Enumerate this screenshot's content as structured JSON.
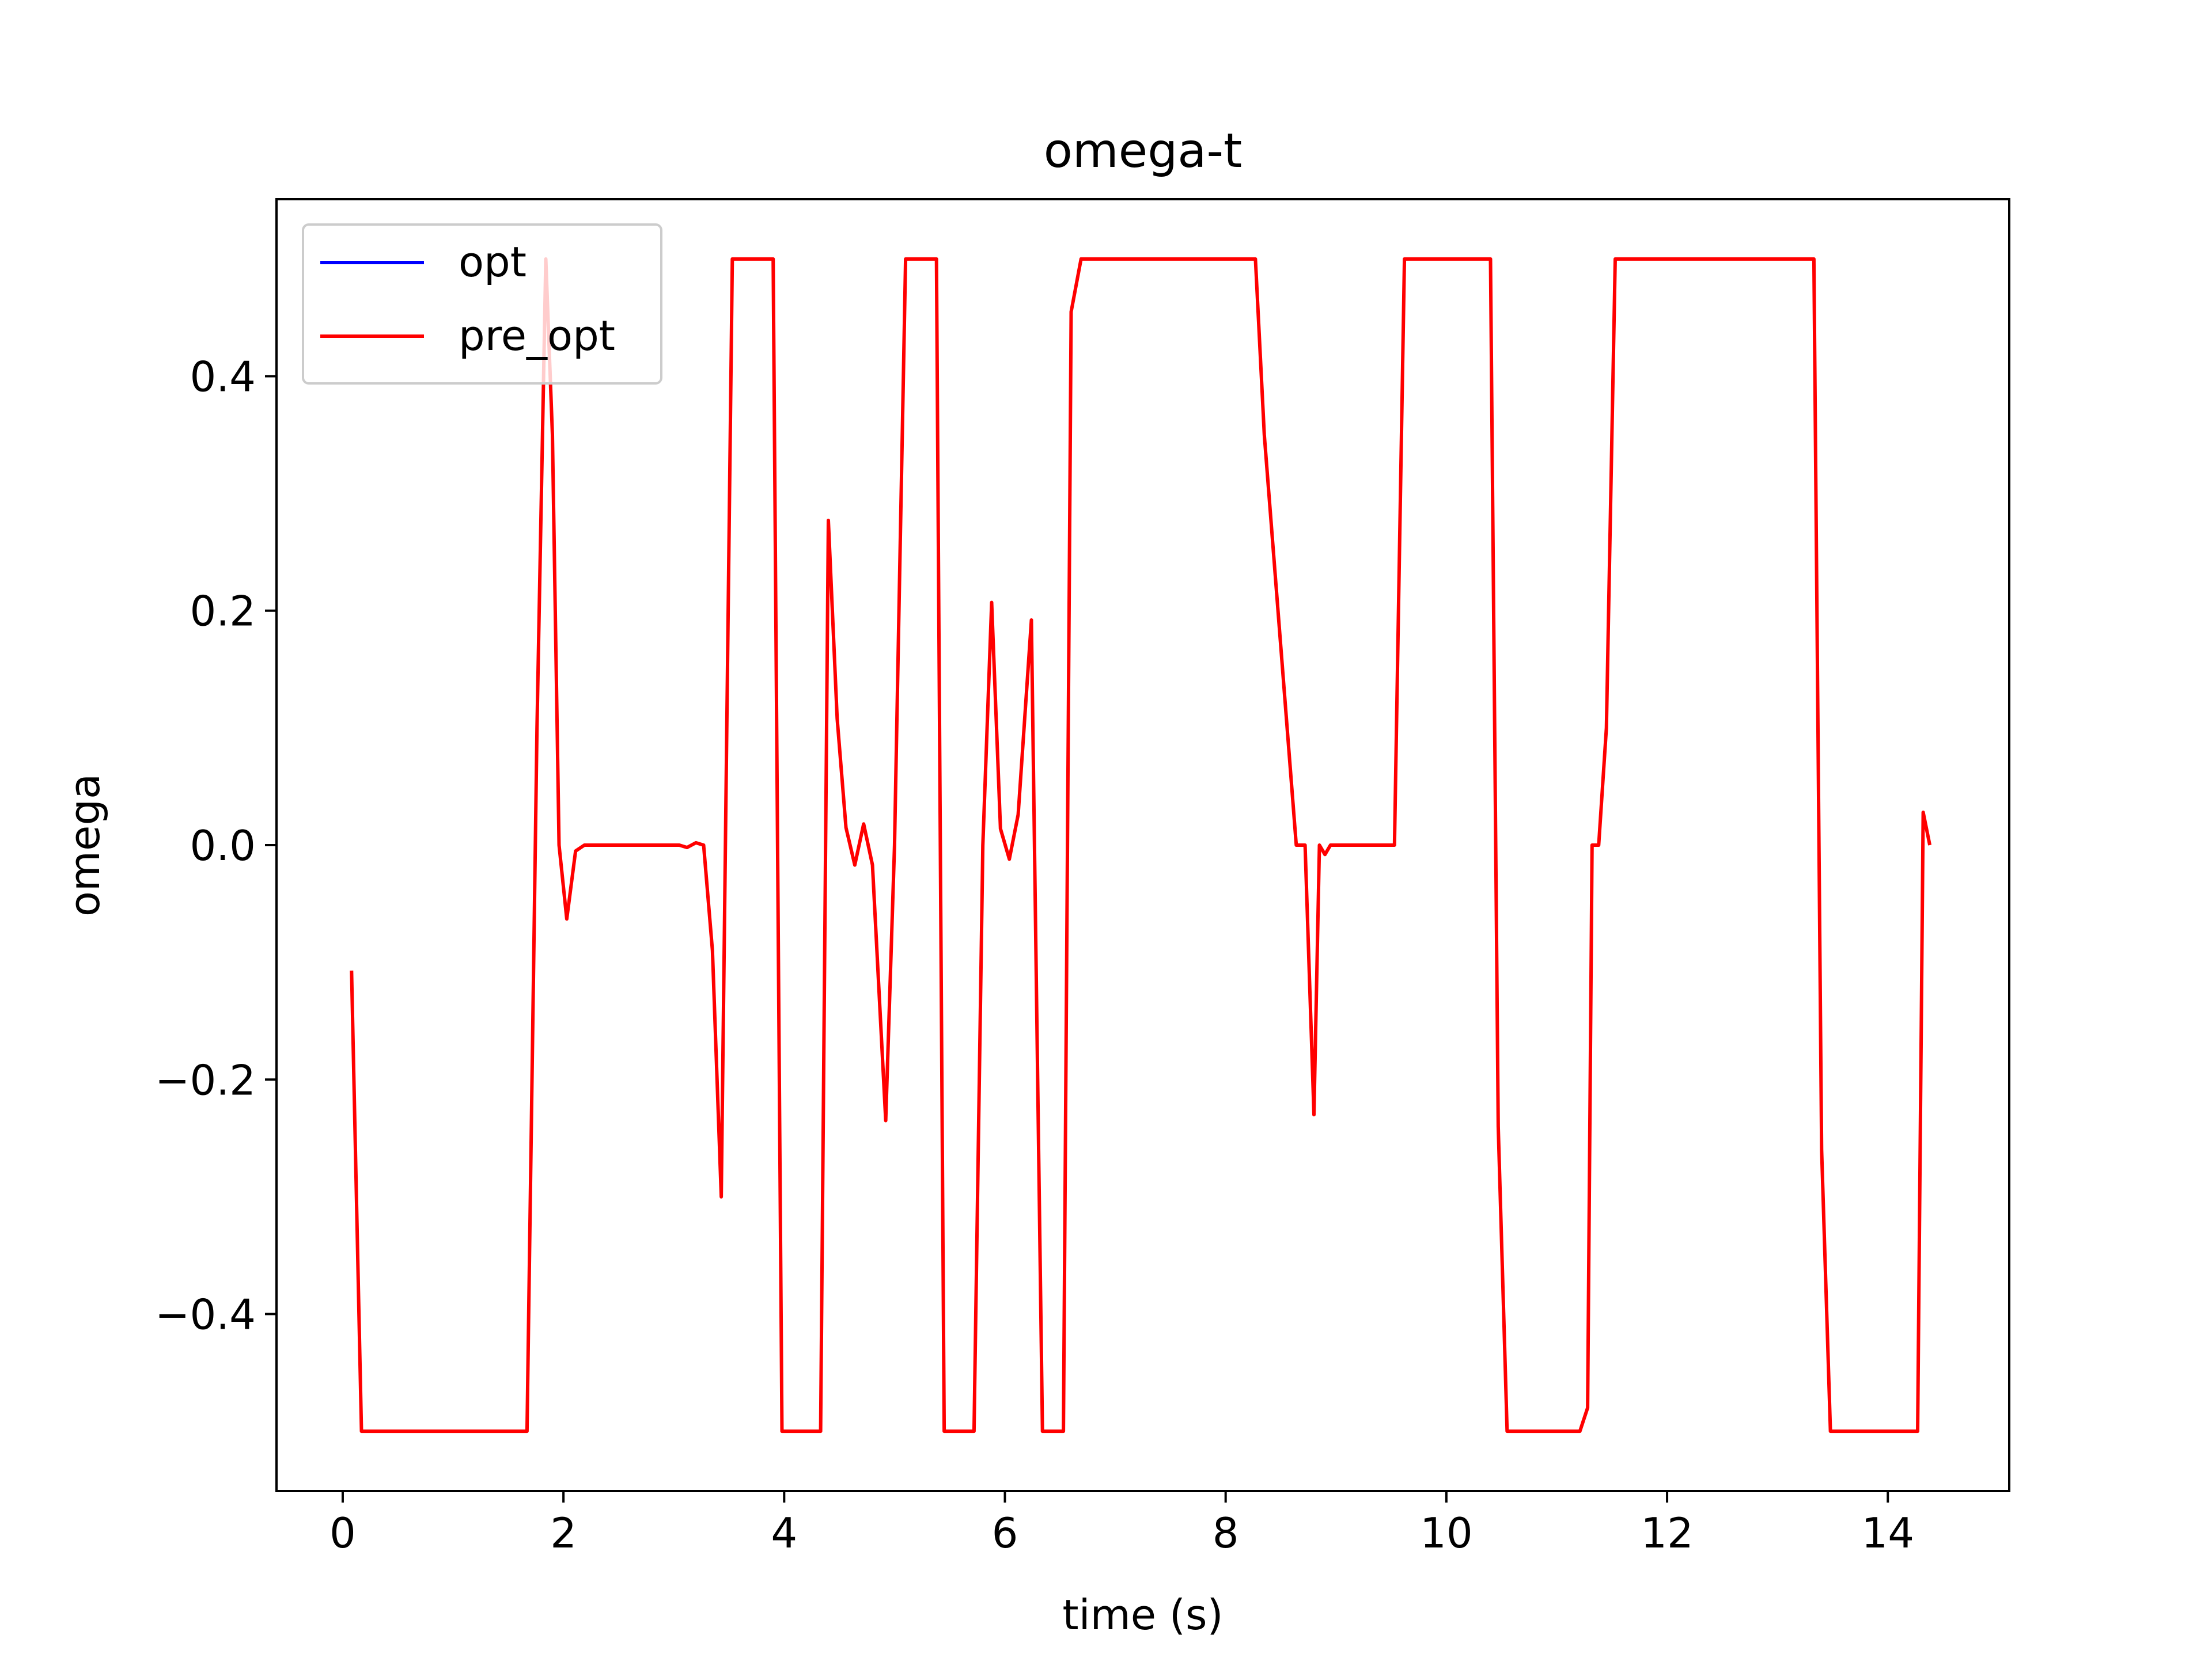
{
  "chart_data": {
    "type": "line",
    "title": "omega-t",
    "xlabel": "time (s)",
    "ylabel": "omega",
    "xlim": [
      -0.6,
      15.1
    ],
    "ylim": [
      -0.551,
      0.551
    ],
    "xticks": [
      0,
      2,
      4,
      6,
      8,
      10,
      12,
      14
    ],
    "xtick_labels": [
      "0",
      "2",
      "4",
      "6",
      "8",
      "10",
      "12",
      "14"
    ],
    "yticks": [
      -0.4,
      -0.2,
      0.0,
      0.2,
      0.4
    ],
    "ytick_labels": [
      "−0.4",
      "−0.2",
      "0.0",
      "0.2",
      "0.4"
    ],
    "grid": false,
    "legend": "upper-left",
    "series": [
      {
        "name": "opt",
        "color": "#0000ff",
        "x": [],
        "y": []
      },
      {
        "name": "pre_opt",
        "color": "#ff0000",
        "x": [
          0.08,
          0.17,
          1.67,
          1.76,
          1.84,
          1.9,
          1.96,
          2.03,
          2.11,
          2.19,
          2.27,
          2.5,
          2.8,
          2.95,
          3.05,
          3.12,
          3.2,
          3.27,
          3.35,
          3.43,
          3.53,
          3.6,
          3.9,
          3.98,
          4.33,
          4.4,
          4.48,
          4.56,
          4.64,
          4.72,
          4.8,
          4.92,
          5.0,
          5.1,
          5.38,
          5.45,
          5.72,
          5.8,
          5.88,
          5.96,
          6.04,
          6.12,
          6.24,
          6.34,
          6.53,
          6.6,
          6.69,
          8.19,
          8.27,
          8.35,
          8.64,
          8.72,
          8.8,
          8.85,
          8.9,
          8.95,
          9.0,
          9.53,
          9.62,
          10.4,
          10.47,
          10.55,
          11.21,
          11.28,
          11.32,
          11.38,
          11.45,
          11.53,
          11.6,
          13.33,
          13.4,
          13.48,
          14.27,
          14.32,
          14.38
        ],
        "y": [
          -0.107,
          -0.5,
          -0.5,
          0.1,
          0.5,
          0.35,
          0.0,
          -0.063,
          -0.005,
          0.0,
          0.0,
          0.0,
          0.0,
          0.0,
          0.0,
          -0.002,
          0.002,
          0.0,
          -0.09,
          -0.3,
          0.5,
          0.5,
          0.5,
          -0.5,
          -0.5,
          0.277,
          0.108,
          0.015,
          -0.017,
          0.018,
          -0.017,
          -0.235,
          0.0,
          0.5,
          0.5,
          -0.5,
          -0.5,
          0.0,
          0.207,
          0.014,
          -0.012,
          0.026,
          0.192,
          -0.5,
          -0.5,
          0.455,
          0.5,
          0.5,
          0.5,
          0.35,
          0.0,
          0.0,
          -0.23,
          0.0,
          -0.008,
          0.0,
          0.0,
          0.0,
          0.5,
          0.5,
          -0.24,
          -0.5,
          -0.5,
          -0.48,
          0.0,
          0.0,
          0.1,
          0.5,
          0.5,
          0.5,
          -0.26,
          -0.5,
          -0.5,
          0.028,
          0.0
        ]
      }
    ]
  }
}
